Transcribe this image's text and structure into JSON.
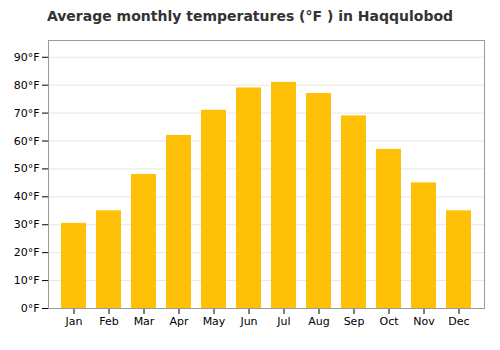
{
  "chart_data": {
    "type": "bar",
    "title": "Average monthly temperatures (°F ) in Haqqulobod",
    "categories": [
      "Jan",
      "Feb",
      "Mar",
      "Apr",
      "May",
      "Jun",
      "Jul",
      "Aug",
      "Sep",
      "Oct",
      "Nov",
      "Dec"
    ],
    "values": [
      30.5,
      35,
      48,
      62,
      71,
      79,
      81,
      77,
      69,
      57,
      45,
      35
    ],
    "color": "#FFC107",
    "ylim": [
      0,
      96
    ],
    "yticks": [
      {
        "value": 0,
        "label": "0°F"
      },
      {
        "value": 10,
        "label": "10°F"
      },
      {
        "value": 20,
        "label": "20°F"
      },
      {
        "value": 30,
        "label": "30°F"
      },
      {
        "value": 40,
        "label": "40°F"
      },
      {
        "value": 50,
        "label": "50°F"
      },
      {
        "value": 60,
        "label": "60°F"
      },
      {
        "value": 70,
        "label": "70°F"
      },
      {
        "value": 80,
        "label": "80°F"
      },
      {
        "value": 90,
        "label": "90°F"
      }
    ],
    "grid": true
  }
}
